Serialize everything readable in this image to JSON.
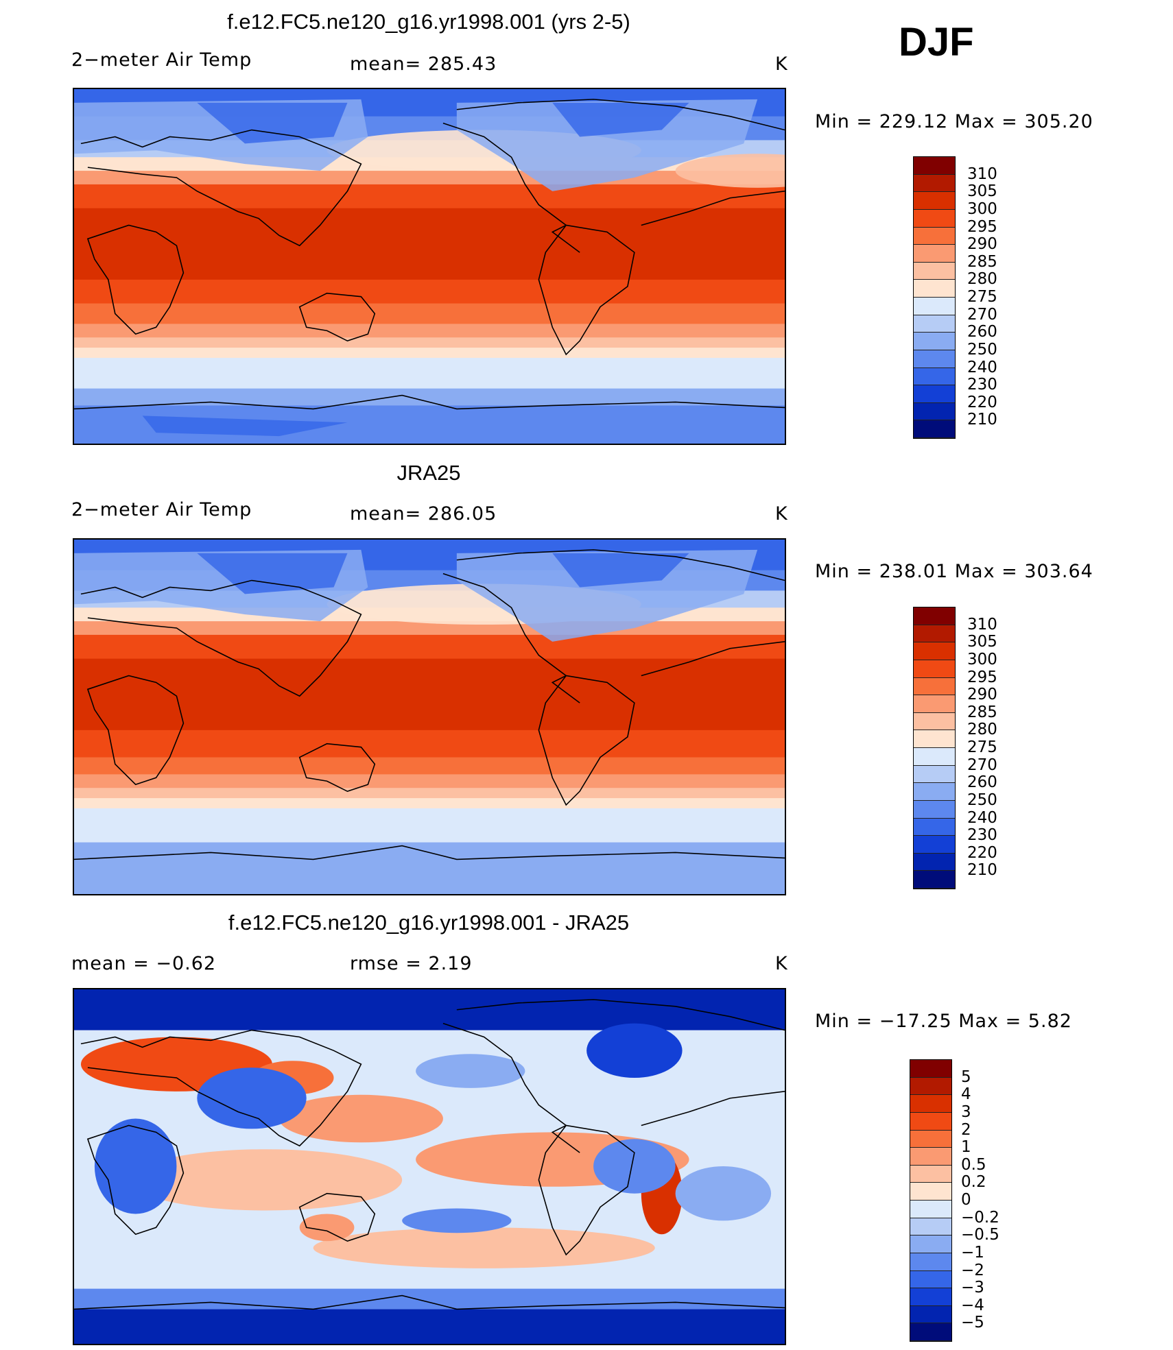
{
  "season": "DJF",
  "panels": [
    {
      "title": "f.e12.FC5.ne120_g16.yr1998.001 (yrs 2-5)",
      "variable": "2−meter Air Temp",
      "stat": "mean=  285.43",
      "units": "K",
      "minmax": "Min  =  229.12  Max  =  305.20",
      "colorbar": {
        "labels": [
          "310",
          "305",
          "300",
          "295",
          "290",
          "285",
          "280",
          "275",
          "270",
          "260",
          "250",
          "240",
          "230",
          "220",
          "210"
        ],
        "colors": [
          "#800000",
          "#b21a00",
          "#d93000",
          "#f04a14",
          "#f7703a",
          "#fa9a72",
          "#fcc0a2",
          "#fee4d0",
          "#dbe9fb",
          "#b6ccf5",
          "#8aacf2",
          "#5d88ee",
          "#3566e8",
          "#1340d6",
          "#0224b0",
          "#000c7a"
        ]
      }
    },
    {
      "title": "JRA25",
      "variable": "2−meter Air Temp",
      "stat": "mean=  286.05",
      "units": "K",
      "minmax": "Min  =  238.01  Max  =  303.64",
      "colorbar": {
        "labels": [
          "310",
          "305",
          "300",
          "295",
          "290",
          "285",
          "280",
          "275",
          "270",
          "260",
          "250",
          "240",
          "230",
          "220",
          "210"
        ],
        "colors": [
          "#800000",
          "#b21a00",
          "#d93000",
          "#f04a14",
          "#f7703a",
          "#fa9a72",
          "#fcc0a2",
          "#fee4d0",
          "#dbe9fb",
          "#b6ccf5",
          "#8aacf2",
          "#5d88ee",
          "#3566e8",
          "#1340d6",
          "#0224b0",
          "#000c7a"
        ]
      }
    },
    {
      "title": "f.e12.FC5.ne120_g16.yr1998.001 - JRA25",
      "variable": "mean =    −0.62",
      "stat": "rmse =     2.19",
      "units": "K",
      "minmax": "Min  =  −17.25  Max  =      5.82",
      "colorbar": {
        "labels": [
          "5",
          "4",
          "3",
          "2",
          "1",
          "0.5",
          "0.2",
          "0",
          "−0.2",
          "−0.5",
          "−1",
          "−2",
          "−3",
          "−4",
          "−5"
        ],
        "colors": [
          "#800000",
          "#b21a00",
          "#d93000",
          "#f04a14",
          "#f7703a",
          "#fa9a72",
          "#fcc0a2",
          "#fee4d0",
          "#dbe9fb",
          "#b6ccf5",
          "#8aacf2",
          "#5d88ee",
          "#3566e8",
          "#1340d6",
          "#0224b0",
          "#000c7a"
        ]
      }
    }
  ]
}
